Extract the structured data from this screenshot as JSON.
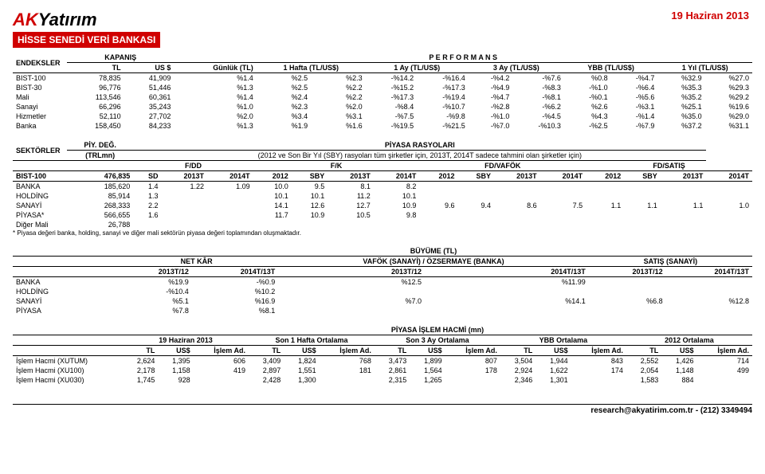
{
  "header": {
    "date": "19 Haziran 2013",
    "logo_a": "AK",
    "logo_b": "Yatırım",
    "title": "HİSSE SENEDİ VERİ BANKASI"
  },
  "t1": {
    "h": {
      "endeksler": "ENDEKSLER",
      "kapanis": "KAPANIŞ",
      "perf": "P E R F O R M A N S",
      "tl": "TL",
      "us": "US $",
      "gunluk": "Günlük (TL)",
      "hafta": "1 Hafta (TL/US$)",
      "ay1": "1 Ay (TL/US$)",
      "ay3": "3 Ay (TL/US$)",
      "ybb": "YBB (TL/US$)",
      "yil": "1 Yıl (TL/US$)"
    },
    "rows": [
      {
        "n": "BIST-100",
        "tl": "78,835",
        "us": "41,909",
        "g": "%1.4",
        "h1": "%2.5",
        "h2": "%2.3",
        "a1": "-%14.2",
        "a2": "-%16.4",
        "a3a": "-%4.2",
        "a3b": "-%7.6",
        "y1": "%0.8",
        "y2": "-%4.7",
        "yy1": "%32.9",
        "yy2": "%27.0"
      },
      {
        "n": "BIST-30",
        "tl": "96,776",
        "us": "51,446",
        "g": "%1.3",
        "h1": "%2.5",
        "h2": "%2.2",
        "a1": "-%15.2",
        "a2": "-%17.3",
        "a3a": "-%4.9",
        "a3b": "-%8.3",
        "y1": "-%1.0",
        "y2": "-%6.4",
        "yy1": "%35.3",
        "yy2": "%29.3"
      },
      {
        "n": "Mali",
        "tl": "113,546",
        "us": "60,361",
        "g": "%1.4",
        "h1": "%2.4",
        "h2": "%2.2",
        "a1": "-%17.3",
        "a2": "-%19.4",
        "a3a": "-%4.7",
        "a3b": "-%8.1",
        "y1": "-%0.1",
        "y2": "-%5.6",
        "yy1": "%35.2",
        "yy2": "%29.2"
      },
      {
        "n": "Sanayi",
        "tl": "66,296",
        "us": "35,243",
        "g": "%1.0",
        "h1": "%2.3",
        "h2": "%2.0",
        "a1": "-%8.4",
        "a2": "-%10.7",
        "a3a": "-%2.8",
        "a3b": "-%6.2",
        "y1": "%2.6",
        "y2": "-%3.1",
        "yy1": "%25.1",
        "yy2": "%19.6"
      },
      {
        "n": "Hizmetler",
        "tl": "52,110",
        "us": "27,702",
        "g": "%2.0",
        "h1": "%3.4",
        "h2": "%3.1",
        "a1": "-%7.5",
        "a2": "-%9.8",
        "a3a": "-%1.0",
        "a3b": "-%4.5",
        "y1": "%4.3",
        "y2": "-%1.4",
        "yy1": "%35.0",
        "yy2": "%29.0"
      },
      {
        "n": "Banka",
        "tl": "158,450",
        "us": "84,233",
        "g": "%1.3",
        "h1": "%1.9",
        "h2": "%1.6",
        "a1": "-%19.5",
        "a2": "-%21.5",
        "a3a": "-%7.0",
        "a3b": "-%10.3",
        "y1": "-%2.5",
        "y2": "-%7.9",
        "yy1": "%37.2",
        "yy2": "%31.1"
      }
    ]
  },
  "t2": {
    "h": {
      "sektorler": "SEKTÖRLER",
      "piydeg": "PİY. DEĞ.",
      "trlmn": "(TRLmn)",
      "rasyo": "PİYASA RASYOLARI",
      "sub": "(2012 ve Son Bir Yıl (SBY) rasyoları tüm şirketler için, 2013T, 2014T sadece tahmini olan şirketler için)",
      "fdd": "F/DD",
      "fk": "F/K",
      "fdvafok": "FD/VAFÖK",
      "fdsatis": "FD/SATIŞ",
      "sd": "SD",
      "y13": "2013T",
      "y14": "2014T",
      "y12": "2012",
      "sby": "SBY"
    },
    "rows": [
      {
        "n": "BIST-100",
        "pd": "476,835",
        "sd": "SD",
        "a": "2013T",
        "b": "2014T",
        "c": "2012",
        "d": "SBY",
        "e": "2013T",
        "f": "2014T",
        "g": "2012",
        "h": "SBY",
        "i": "2013T",
        "j": "2014T",
        "k": "2012",
        "l": "SBY",
        "m": "2013T",
        "o": "2014T"
      },
      {
        "n": "BANKA",
        "pd": "185,620",
        "sd": "1.4",
        "a": "1.22",
        "b": "1.09",
        "c": "10.0",
        "d": "9.5",
        "e": "8.1",
        "f": "8.2"
      },
      {
        "n": "HOLDİNG",
        "pd": "85,914",
        "sd": "1.3",
        "c": "10.1",
        "d": "10.1",
        "e": "11.2",
        "f": "10.1"
      },
      {
        "n": "SANAYİ",
        "pd": "268,333",
        "sd": "2.2",
        "c": "14.1",
        "d": "12.6",
        "e": "12.7",
        "f": "10.9",
        "g": "9.6",
        "h": "9.4",
        "i": "8.6",
        "j": "7.5",
        "k": "1.1",
        "l": "1.1",
        "m": "1.1",
        "o": "1.0"
      },
      {
        "n": "PİYASA*",
        "pd": "566,655",
        "sd": "1.6",
        "c": "11.7",
        "d": "10.9",
        "e": "10.5",
        "f": "9.8"
      },
      {
        "n": "Diğer Mali",
        "pd": "26,788"
      }
    ],
    "note": "* Piyasa değeri banka, holding, sanayi ve diğer mali sektörün piyasa değeri toplamından oluşmaktadır."
  },
  "t3": {
    "h": {
      "buyume": "BÜYÜME (TL)",
      "netkar": "NET KÂR",
      "vafok": "VAFÖK (SANAYİ) / ÖZSERMAYE (BANKA)",
      "satis": "SATIŞ (SANAYİ)",
      "p1": "2013T/12",
      "p2": "2014T/13T"
    },
    "rows": [
      {
        "n": "BANKA",
        "a": "%19.9",
        "b": "-%0.9",
        "c": "%12.5",
        "d": "%11.99"
      },
      {
        "n": "HOLDİNG",
        "a": "-%10.4",
        "b": "%10.2"
      },
      {
        "n": "SANAYİ",
        "a": "%5.1",
        "b": "%16.9",
        "c": "%7.0",
        "d": "%14.1",
        "e": "%6.8",
        "f": "%12.8"
      },
      {
        "n": "PİYASA",
        "a": "%7.8",
        "b": "%8.1"
      }
    ]
  },
  "t4": {
    "h": {
      "title": "PİYASA İŞLEM HACMİ (mn)",
      "d": "19 Haziran 2013",
      "s1": "Son 1 Hafta Ortalama",
      "s3": "Son 3 Ay Ortalama",
      "ybb": "YBB Ortalama",
      "o12": "2012 Ortalama",
      "tl": "TL",
      "us": "US$",
      "ad": "İşlem Ad."
    },
    "rows": [
      {
        "n": "İşlem Hacmi (XUTUM)",
        "a": "2,624",
        "b": "1,395",
        "c": "606",
        "d": "3,409",
        "e": "1,824",
        "f": "768",
        "g": "3,473",
        "h": "1,899",
        "i": "807",
        "j": "3,504",
        "k": "1,944",
        "l": "843",
        "m": "2,552",
        "o": "1,426",
        "p": "714"
      },
      {
        "n": "İşlem Hacmi (XU100)",
        "a": "2,178",
        "b": "1,158",
        "c": "419",
        "d": "2,897",
        "e": "1,551",
        "f": "181",
        "g": "2,861",
        "h": "1,564",
        "i": "178",
        "j": "2,924",
        "k": "1,622",
        "l": "174",
        "m": "2,054",
        "o": "1,148",
        "p": "499"
      },
      {
        "n": "İşlem Hacmi (XU030)",
        "a": "1,745",
        "b": "928",
        "d": "2,428",
        "e": "1,300",
        "g": "2,315",
        "h": "1,265",
        "j": "2,346",
        "k": "1,301",
        "m": "1,583",
        "o": "884"
      }
    ]
  },
  "footer": "research@akyatirim.com.tr - (212) 3349494"
}
